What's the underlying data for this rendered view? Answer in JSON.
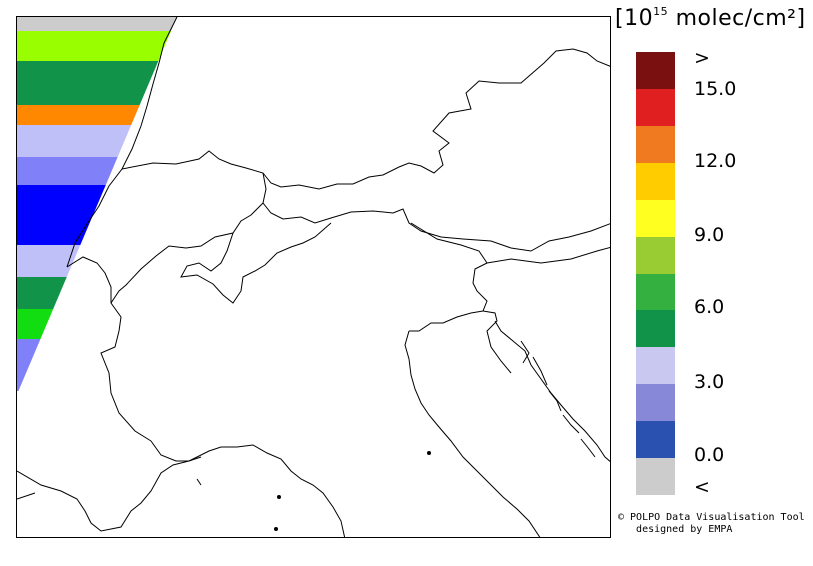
{
  "legend": {
    "unit_prefix": "[10",
    "unit_exponent": "15",
    "unit_suffix": " molec/cm²]",
    "labels": [
      ">",
      "15.0",
      "12.0",
      "9.0",
      "6.0",
      "3.0",
      "0.0",
      "<"
    ],
    "colors": [
      "#7a1010",
      "#e02020",
      "#f07a20",
      "#ffcc00",
      "#ffff20",
      "#99cc33",
      "#33b040",
      "#11944a",
      "#c8c8f0",
      "#8888d8",
      "#2a50b0",
      "#cccccc"
    ],
    "bin_count": 12
  },
  "swath": {
    "bands": [
      {
        "color": "#cccccc",
        "value_class": "<"
      },
      {
        "color": "#99ff00",
        "value_class": "9.0-10.5"
      },
      {
        "color": "#11944a",
        "value_class": "4.5-6.0"
      },
      {
        "color": "#ff8800",
        "value_class": "12.0-13.5"
      },
      {
        "color": "#c0c0f8",
        "value_class": "3.0-4.5"
      },
      {
        "color": "#8080f8",
        "value_class": "1.5-3.0"
      },
      {
        "color": "#0000ff",
        "value_class": "0.0-1.5"
      },
      {
        "color": "#c0c0f8",
        "value_class": "3.0-4.5"
      },
      {
        "color": "#11944a",
        "value_class": "4.5-6.0"
      },
      {
        "color": "#11dd11",
        "value_class": "6.0-7.5"
      },
      {
        "color": "#8080f8",
        "value_class": "1.5-3.0"
      }
    ]
  },
  "credit": {
    "line1": "© POLPO Data Visualisation Tool",
    "line2": "   designed by EMPA"
  }
}
